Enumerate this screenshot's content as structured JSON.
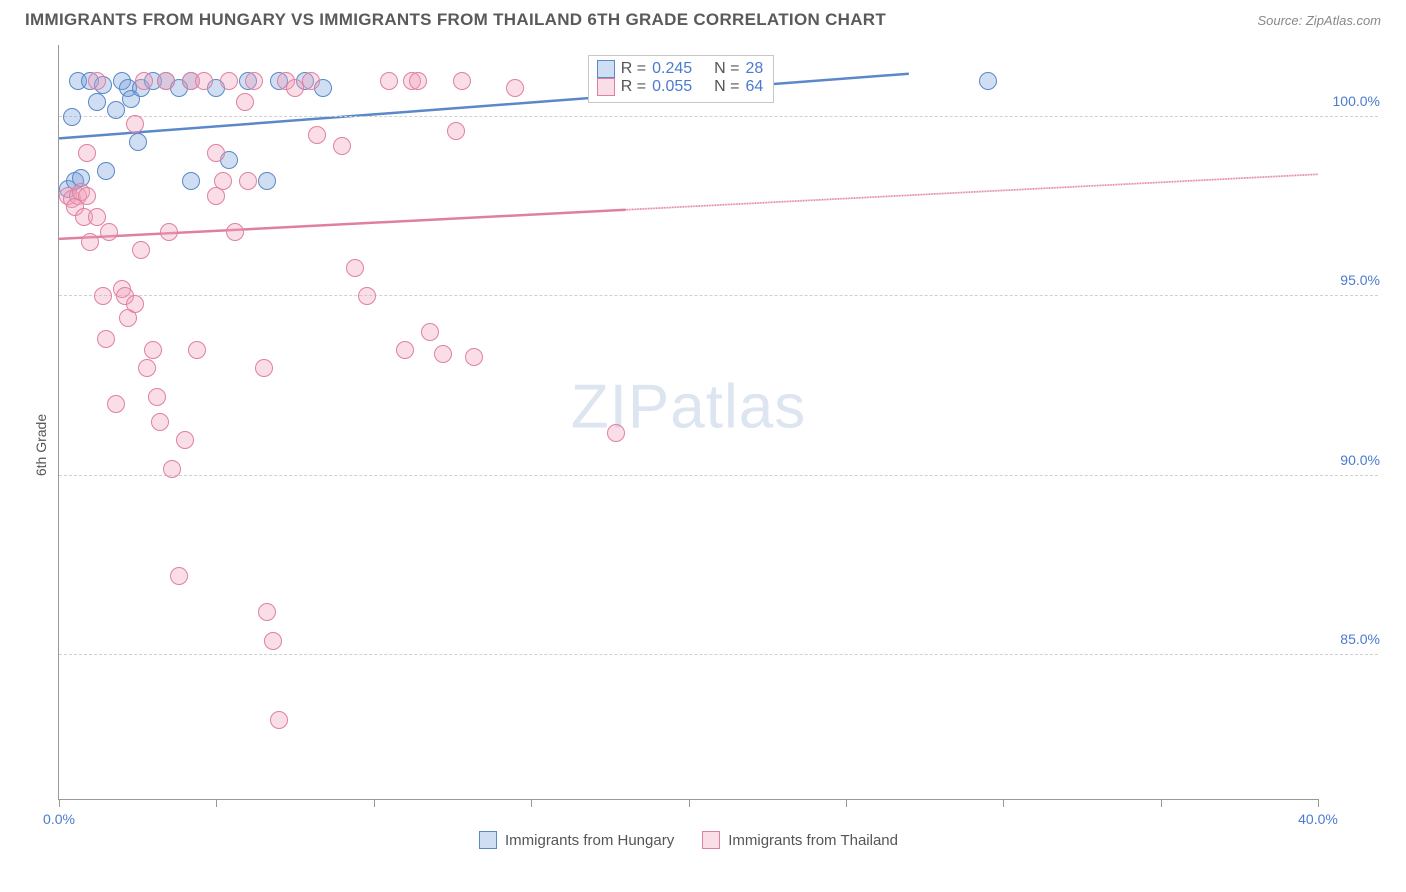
{
  "title": "IMMIGRANTS FROM HUNGARY VS IMMIGRANTS FROM THAILAND 6TH GRADE CORRELATION CHART",
  "source": "Source: ZipAtlas.com",
  "watermark_a": "ZIP",
  "watermark_b": "atlas",
  "chart": {
    "type": "scatter",
    "ylabel": "6th Grade",
    "xlim": [
      0,
      40
    ],
    "ylim": [
      81,
      102
    ],
    "xticks": [
      0,
      5,
      10,
      15,
      20,
      25,
      30,
      35,
      40
    ],
    "xtick_labels": {
      "0": "0.0%",
      "40": "40.0%"
    },
    "yticks": [
      85,
      90,
      95,
      100
    ],
    "ytick_labels": {
      "85": "85.0%",
      "90": "90.0%",
      "95": "95.0%",
      "100": "100.0%"
    },
    "grid_color": "#d0d0d0",
    "background_color": "#ffffff",
    "marker_radius": 9,
    "marker_opacity": 0.55,
    "series": [
      {
        "name": "Immigrants from Hungary",
        "color": "#6b99d8",
        "fill": "rgba(120,160,220,0.35)",
        "stroke": "#5a88c8",
        "R": "0.245",
        "N": "28",
        "trend": {
          "x0": 0,
          "y0": 99.4,
          "x1": 27,
          "y1": 101.2,
          "dash_to_x": 27,
          "width": 2.5
        },
        "points": [
          [
            0.3,
            98.0
          ],
          [
            0.5,
            98.2
          ],
          [
            0.7,
            98.3
          ],
          [
            0.4,
            100.0
          ],
          [
            0.6,
            101.0
          ],
          [
            1.0,
            101.0
          ],
          [
            1.2,
            100.4
          ],
          [
            1.4,
            100.9
          ],
          [
            1.5,
            98.5
          ],
          [
            1.8,
            100.2
          ],
          [
            2.0,
            101.0
          ],
          [
            2.2,
            100.8
          ],
          [
            2.3,
            100.5
          ],
          [
            2.6,
            100.8
          ],
          [
            2.5,
            99.3
          ],
          [
            3.0,
            101.0
          ],
          [
            3.4,
            101.0
          ],
          [
            3.8,
            100.8
          ],
          [
            4.2,
            101.0
          ],
          [
            4.2,
            98.2
          ],
          [
            5.0,
            100.8
          ],
          [
            5.4,
            98.8
          ],
          [
            6.0,
            101.0
          ],
          [
            6.6,
            98.2
          ],
          [
            7.0,
            101.0
          ],
          [
            7.8,
            101.0
          ],
          [
            8.4,
            100.8
          ],
          [
            29.5,
            101.0
          ]
        ]
      },
      {
        "name": "Immigrants from Thailand",
        "color": "#e895ac",
        "fill": "rgba(240,160,185,0.35)",
        "stroke": "#e080a0",
        "R": "0.055",
        "N": "64",
        "trend": {
          "x0": 0,
          "y0": 96.6,
          "x1": 40,
          "y1": 98.4,
          "dash_to_x": 18,
          "width": 2.5
        },
        "points": [
          [
            0.3,
            97.8
          ],
          [
            0.4,
            97.7
          ],
          [
            0.6,
            97.8
          ],
          [
            0.5,
            97.5
          ],
          [
            0.7,
            97.9
          ],
          [
            0.9,
            97.8
          ],
          [
            0.8,
            97.2
          ],
          [
            1.0,
            96.5
          ],
          [
            0.9,
            99.0
          ],
          [
            1.2,
            101.0
          ],
          [
            1.2,
            97.2
          ],
          [
            1.4,
            95.0
          ],
          [
            1.6,
            96.8
          ],
          [
            1.5,
            93.8
          ],
          [
            1.8,
            92.0
          ],
          [
            2.0,
            95.2
          ],
          [
            2.1,
            95.0
          ],
          [
            2.2,
            94.4
          ],
          [
            2.4,
            94.8
          ],
          [
            2.4,
            99.8
          ],
          [
            2.7,
            101.0
          ],
          [
            2.6,
            96.3
          ],
          [
            2.8,
            93.0
          ],
          [
            3.0,
            93.5
          ],
          [
            3.1,
            92.2
          ],
          [
            3.2,
            91.5
          ],
          [
            3.4,
            101.0
          ],
          [
            3.5,
            96.8
          ],
          [
            3.6,
            90.2
          ],
          [
            3.8,
            87.2
          ],
          [
            4.0,
            91.0
          ],
          [
            4.2,
            101.0
          ],
          [
            4.4,
            93.5
          ],
          [
            4.6,
            101.0
          ],
          [
            5.0,
            99.0
          ],
          [
            5.0,
            97.8
          ],
          [
            5.2,
            98.2
          ],
          [
            5.4,
            101.0
          ],
          [
            5.6,
            96.8
          ],
          [
            5.9,
            100.4
          ],
          [
            6.0,
            98.2
          ],
          [
            6.2,
            101.0
          ],
          [
            6.5,
            93.0
          ],
          [
            6.6,
            86.2
          ],
          [
            6.8,
            85.4
          ],
          [
            7.0,
            83.2
          ],
          [
            7.2,
            101.0
          ],
          [
            7.5,
            100.8
          ],
          [
            8.0,
            101.0
          ],
          [
            8.2,
            99.5
          ],
          [
            9.0,
            99.2
          ],
          [
            9.4,
            95.8
          ],
          [
            9.8,
            95.0
          ],
          [
            10.5,
            101.0
          ],
          [
            11.0,
            93.5
          ],
          [
            11.2,
            101.0
          ],
          [
            11.4,
            101.0
          ],
          [
            11.8,
            94.0
          ],
          [
            12.2,
            93.4
          ],
          [
            12.6,
            99.6
          ],
          [
            12.8,
            101.0
          ],
          [
            13.2,
            93.3
          ],
          [
            14.5,
            100.8
          ],
          [
            17.7,
            91.2
          ]
        ]
      }
    ]
  },
  "legend_top": {
    "r_label": "R =",
    "n_label": "N ="
  }
}
